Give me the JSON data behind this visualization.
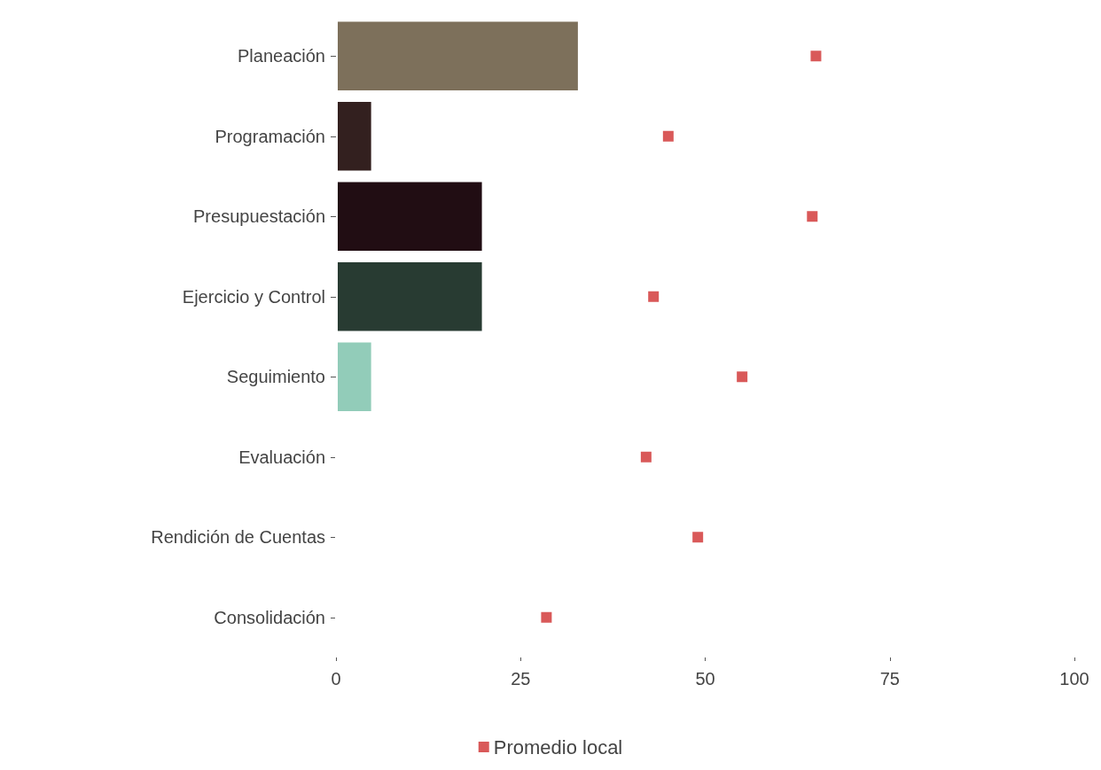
{
  "chart_data": {
    "type": "bar",
    "orientation": "horizontal",
    "categories": [
      "Planeación",
      "Programación",
      "Presupuestación",
      "Ejercicio y Control",
      "Seguimiento",
      "Evaluación",
      "Rendición de Cuentas",
      "Consolidación"
    ],
    "series": [
      {
        "values": [
          33,
          5,
          20,
          20,
          5,
          0,
          0,
          0
        ],
        "colors": [
          "#7d705b",
          "#33201f",
          "#210d13",
          "#283b32",
          "#92ccb9",
          null,
          null,
          null
        ]
      },
      {
        "type": "scatter",
        "name": "Promedio local",
        "color": "#d03030",
        "x": [
          "Planeación",
          "Programación",
          "Presupuestación",
          "Ejercicio y Control",
          "Seguimiento",
          "Evaluación",
          "Rendición de Cuentas",
          "Consolidación"
        ],
        "values": [
          65,
          45,
          64.5,
          43,
          55,
          42,
          49,
          28.5
        ]
      }
    ],
    "xlim": [
      0,
      100
    ],
    "xticks": [
      0,
      25,
      50,
      75,
      100
    ],
    "grid": false,
    "legend": "bottom",
    "marker": "square"
  }
}
